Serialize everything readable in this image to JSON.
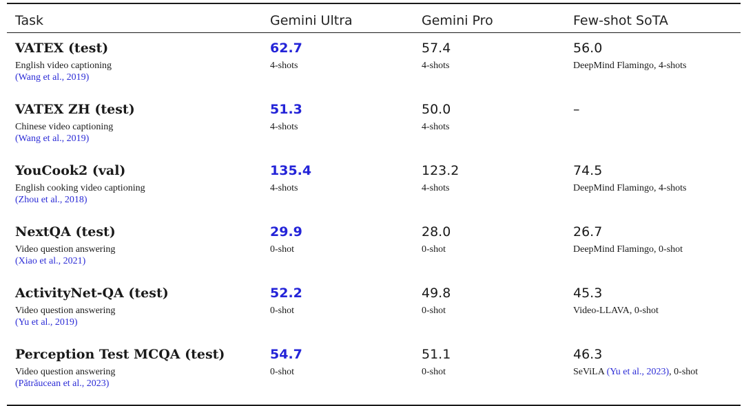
{
  "header": {
    "task": "Task",
    "ultra": "Gemini Ultra",
    "pro": "Gemini Pro",
    "sota": "Few-shot SoTA"
  },
  "rows": [
    {
      "task": "VATEX (test)",
      "desc": "English video captioning",
      "cite": "(Wang et al., 2019)",
      "ultra_score": "62.7",
      "ultra_sub": "4-shots",
      "pro_score": "57.4",
      "pro_sub": "4-shots",
      "sota_score": "56.0",
      "sota_sub": "DeepMind Flamingo, 4-shots"
    },
    {
      "task": "VATEX ZH (test)",
      "desc": "Chinese video captioning",
      "cite": "(Wang et al., 2019)",
      "ultra_score": "51.3",
      "ultra_sub": "4-shots",
      "pro_score": "50.0",
      "pro_sub": "4-shots",
      "sota_score": "–",
      "sota_sub": ""
    },
    {
      "task": "YouCook2 (val)",
      "desc": "English cooking video captioning",
      "cite": "(Zhou et al., 2018)",
      "ultra_score": "135.4",
      "ultra_sub": "4-shots",
      "pro_score": "123.2",
      "pro_sub": "4-shots",
      "sota_score": "74.5",
      "sota_sub": "DeepMind Flamingo, 4-shots"
    },
    {
      "task": "NextQA (test)",
      "desc": "Video question answering",
      "cite": "(Xiao et al., 2021)",
      "ultra_score": "29.9",
      "ultra_sub": "0-shot",
      "pro_score": "28.0",
      "pro_sub": "0-shot",
      "sota_score": "26.7",
      "sota_sub": "DeepMind Flamingo, 0-shot"
    },
    {
      "task": "ActivityNet-QA (test)",
      "desc": "Video question answering",
      "cite": "(Yu et al., 2019)",
      "ultra_score": "52.2",
      "ultra_sub": "0-shot",
      "pro_score": "49.8",
      "pro_sub": "0-shot",
      "sota_score": "45.3",
      "sota_sub": "Video-LLAVA, 0-shot"
    },
    {
      "task": "Perception Test MCQA (test)",
      "desc": "Video question answering",
      "cite": "(Pătrăucean et al., 2023)",
      "ultra_score": "54.7",
      "ultra_sub": "0-shot",
      "pro_score": "51.1",
      "pro_sub": "0-shot",
      "sota_score": "46.3",
      "sota_sub_pre": "SeViLA ",
      "sota_sub_cite": "(Yu et al., 2023)",
      "sota_sub_post": ", 0-shot"
    }
  ],
  "colors": {
    "best": "#2424d8",
    "citation": "#2b2bd6"
  }
}
